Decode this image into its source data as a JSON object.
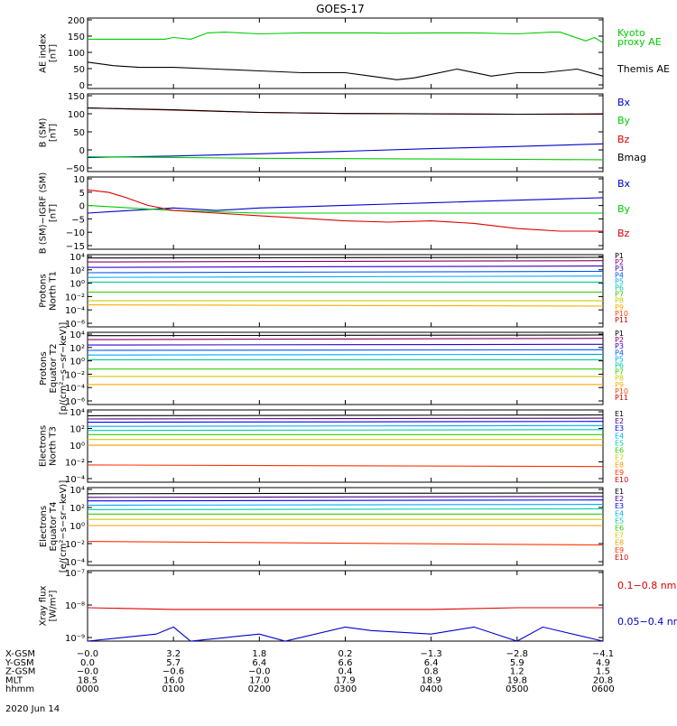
{
  "title": "GOES-17",
  "date_label": "2020 Jun 14",
  "colors": {
    "black": "#000000",
    "green": "#00cc00",
    "blue": "#0000cc",
    "red": "#dd0000",
    "P1": "#000000",
    "P2": "#8b0066",
    "P3": "#3300cc",
    "P4": "#0055ff",
    "P5": "#00aaff",
    "P6": "#00cc99",
    "P7": "#33cc00",
    "P8": "#cccc00",
    "P9": "#ffaa00",
    "P10": "#ff4400",
    "P11": "#cc0000",
    "E1": "#000000",
    "E2": "#4b0082",
    "E3": "#0000ff",
    "E4": "#00aaff",
    "E5": "#00ccaa",
    "E6": "#33cc00",
    "E7": "#cccc00",
    "E8": "#ff9900",
    "E9": "#ff3300",
    "E10": "#cc0000"
  },
  "chart_data": [
    {
      "id": "ae",
      "type": "line",
      "ylabel": [
        "AE index",
        "[nT]"
      ],
      "yticks": [
        "200",
        "150",
        "100",
        "50",
        "0"
      ],
      "ylim": [
        0,
        200
      ],
      "series": [
        {
          "name": "Kyoto",
          "name2": "proxy AE",
          "color_key": "green",
          "x": [
            0,
            0.5,
            0.9,
            1,
            1.2,
            1.4,
            1.6,
            2,
            2.5,
            3,
            3.3,
            3.5,
            4,
            4.5,
            5,
            5.4,
            5.5,
            5.8,
            5.9,
            6
          ],
          "values": [
            140,
            140,
            140,
            145,
            140,
            158,
            160,
            155,
            158,
            158,
            158,
            157,
            158,
            158,
            155,
            160,
            160,
            135,
            145,
            130
          ]
        },
        {
          "name": "Themis AE",
          "color_key": "black",
          "x": [
            0,
            0.3,
            0.6,
            1,
            1.5,
            2,
            2.5,
            3,
            3.3,
            3.6,
            3.8,
            4,
            4.3,
            4.7,
            5,
            5.3,
            5.7,
            6
          ],
          "values": [
            75,
            65,
            60,
            60,
            55,
            50,
            45,
            45,
            35,
            25,
            30,
            40,
            55,
            35,
            45,
            45,
            55,
            35
          ]
        }
      ]
    },
    {
      "id": "bsm",
      "type": "line",
      "ylabel": [
        "B (SM)",
        "[nT]"
      ],
      "yticks": [
        "150",
        "100",
        "50",
        "0",
        "−50"
      ],
      "ylim": [
        -60,
        150
      ],
      "series": [
        {
          "name": "Bx",
          "color_key": "blue",
          "x": [
            0,
            1,
            2,
            3,
            4,
            5,
            6
          ],
          "values": [
            -22,
            -18,
            -12,
            -5,
            2,
            8,
            15
          ]
        },
        {
          "name": "By",
          "color_key": "green",
          "x": [
            0,
            1,
            2,
            3,
            4,
            5,
            6
          ],
          "values": [
            -20,
            -22,
            -24,
            -25,
            -26,
            -27,
            -28
          ]
        },
        {
          "name": "Bz",
          "color_key": "red",
          "x": [
            0,
            1,
            2,
            3,
            4,
            5,
            6
          ],
          "values": [
            112,
            106,
            100,
            97,
            96,
            95,
            95
          ]
        },
        {
          "name": "Bmag",
          "color_key": "black",
          "x": [
            0,
            1,
            2,
            3,
            4,
            5,
            6
          ],
          "values": [
            112,
            107,
            100,
            97,
            96,
            95,
            96
          ]
        }
      ]
    },
    {
      "id": "dbsm",
      "type": "line",
      "ylabel": [
        "B (SM)−IGRF (SM)",
        "[nT]"
      ],
      "yticks": [
        "10",
        "5",
        "0",
        "−5",
        "−10",
        "−15"
      ],
      "ylim": [
        -17,
        11
      ],
      "series": [
        {
          "name": "Bx",
          "color_key": "blue",
          "x": [
            0,
            0.5,
            1,
            1.5,
            2,
            2.5,
            3,
            3.5,
            4,
            4.5,
            5,
            5.5,
            6
          ],
          "values": [
            -3,
            -2,
            -1,
            -2,
            -1,
            -0.5,
            0,
            0.5,
            1,
            1.5,
            2,
            2.5,
            3
          ]
        },
        {
          "name": "By",
          "color_key": "green",
          "x": [
            0,
            0.5,
            1,
            1.5,
            2,
            2.5,
            3,
            3.5,
            4,
            4.5,
            5,
            5.5,
            6
          ],
          "values": [
            0,
            -1,
            -2,
            -2.5,
            -3,
            -3,
            -3,
            -3,
            -3,
            -3,
            -3,
            -3,
            -3
          ]
        },
        {
          "name": "Bz",
          "color_key": "red",
          "x": [
            0,
            0.25,
            0.45,
            0.7,
            1,
            1.5,
            2,
            2.5,
            3,
            3.5,
            4,
            4.5,
            5,
            5.5,
            6
          ],
          "values": [
            6,
            5,
            3,
            0,
            -2,
            -3,
            -4,
            -5,
            -6,
            -6.5,
            -6,
            -7,
            -9,
            -10,
            -10
          ]
        }
      ]
    },
    {
      "id": "protons_t1",
      "type": "line",
      "log": true,
      "ylabel": [
        "Protons",
        "North T1"
      ],
      "yticks": [
        "10⁴",
        "10²",
        "10⁰",
        "10⁻²",
        "10⁻⁴",
        "10⁻⁶"
      ],
      "ylim": [
        -6.5,
        4.3
      ],
      "series": [
        {
          "name": "P1",
          "color_key": "P1",
          "x": [
            0,
            6
          ],
          "values": [
            3.8,
            3.9
          ]
        },
        {
          "name": "P2",
          "color_key": "P2",
          "x": [
            0,
            6
          ],
          "values": [
            3.2,
            3.4
          ]
        },
        {
          "name": "P3",
          "color_key": "P3",
          "x": [
            0,
            6
          ],
          "values": [
            2.4,
            2.6
          ]
        },
        {
          "name": "P4",
          "color_key": "P4",
          "x": [
            0,
            6
          ],
          "values": [
            1.6,
            1.8
          ]
        },
        {
          "name": "P5",
          "color_key": "P5",
          "x": [
            0,
            6
          ],
          "values": [
            0.9,
            1.1
          ]
        },
        {
          "name": "P6",
          "color_key": "P6",
          "x": [
            0,
            6
          ],
          "values": [
            0.2,
            0.2
          ]
        },
        {
          "name": "P7",
          "color_key": "P7",
          "x": [
            0,
            6
          ],
          "values": [
            -1.3,
            -1.3
          ]
        },
        {
          "name": "P8",
          "color_key": "P8",
          "x": [
            0,
            6
          ],
          "values": [
            -2.6,
            -2.6
          ]
        },
        {
          "name": "P9",
          "color_key": "P9",
          "x": [
            0,
            6
          ],
          "values": [
            -3.2,
            -3.4
          ]
        }
      ]
    },
    {
      "id": "protons_t2",
      "type": "line",
      "log": true,
      "ylabel": [
        "Protons",
        "Equator T2",
        "[p/(cm²−s−sr−keV)]"
      ],
      "yticks": [
        "10⁴",
        "10²",
        "10⁰",
        "10⁻²",
        "10⁻⁴",
        "10⁻⁶"
      ],
      "ylim": [
        -6.5,
        4.3
      ],
      "series": [
        {
          "name": "P1",
          "color_key": "P1",
          "x": [
            0,
            6
          ],
          "values": [
            3.8,
            3.9
          ]
        },
        {
          "name": "P2",
          "color_key": "P2",
          "x": [
            0,
            6
          ],
          "values": [
            3.2,
            3.4
          ]
        },
        {
          "name": "P3",
          "color_key": "P3",
          "x": [
            0,
            6
          ],
          "values": [
            2.4,
            2.5
          ]
        },
        {
          "name": "P4",
          "color_key": "P4",
          "x": [
            0,
            6
          ],
          "values": [
            1.6,
            1.7
          ]
        },
        {
          "name": "P5",
          "color_key": "P5",
          "x": [
            0,
            6
          ],
          "values": [
            0.9,
            1.0
          ]
        },
        {
          "name": "P6",
          "color_key": "P6",
          "x": [
            0,
            6
          ],
          "values": [
            0.2,
            0.2
          ]
        },
        {
          "name": "P7",
          "color_key": "P7",
          "x": [
            0,
            6
          ],
          "values": [
            -1.2,
            -1.2
          ]
        },
        {
          "name": "P8",
          "color_key": "P8",
          "x": [
            0,
            6
          ],
          "values": [
            -2.3,
            -2.3
          ]
        },
        {
          "name": "P9",
          "color_key": "P9",
          "x": [
            0,
            6
          ],
          "values": [
            -3.5,
            -3.5
          ]
        }
      ]
    },
    {
      "id": "electrons_t3",
      "type": "line",
      "log": true,
      "ylabel": [
        "Electrons",
        "North T3"
      ],
      "yticks": [
        "10⁴",
        "10²",
        "10⁰",
        "10⁻²",
        "10⁻⁴"
      ],
      "ylim": [
        -4.5,
        4.3
      ],
      "series": [
        {
          "name": "E1",
          "color_key": "E1",
          "x": [
            0,
            6
          ],
          "values": [
            3.6,
            3.7
          ]
        },
        {
          "name": "E2",
          "color_key": "E2",
          "x": [
            0,
            6
          ],
          "values": [
            3.2,
            3.3
          ]
        },
        {
          "name": "E3",
          "color_key": "E3",
          "x": [
            0,
            6
          ],
          "values": [
            2.8,
            2.9
          ]
        },
        {
          "name": "E4",
          "color_key": "E4",
          "x": [
            0,
            6
          ],
          "values": [
            2.3,
            2.4
          ]
        },
        {
          "name": "E5",
          "color_key": "E5",
          "x": [
            0,
            6
          ],
          "values": [
            1.8,
            1.9
          ]
        },
        {
          "name": "E6",
          "color_key": "E6",
          "x": [
            0,
            6
          ],
          "values": [
            1.3,
            1.3
          ]
        },
        {
          "name": "E7",
          "color_key": "E7",
          "x": [
            0,
            6
          ],
          "values": [
            0.7,
            0.7
          ]
        },
        {
          "name": "E8",
          "color_key": "E8",
          "x": [
            0,
            6
          ],
          "values": [
            0.0,
            0.0
          ]
        },
        {
          "name": "E9",
          "color_key": "E9",
          "x": [
            0,
            6
          ],
          "values": [
            -2.4,
            -2.6
          ]
        }
      ]
    },
    {
      "id": "electrons_t4",
      "type": "line",
      "log": true,
      "ylabel": [
        "Electrons",
        "Equator T4",
        "[e/(cm²−s−sr−keV)]"
      ],
      "yticks": [
        "10⁴",
        "10²",
        "10⁰",
        "10⁻²",
        "10⁻⁴"
      ],
      "ylim": [
        -4.5,
        4.3
      ],
      "series": [
        {
          "name": "E1",
          "color_key": "E1",
          "x": [
            0,
            6
          ],
          "values": [
            3.6,
            3.7
          ]
        },
        {
          "name": "E2",
          "color_key": "E2",
          "x": [
            0,
            6
          ],
          "values": [
            3.2,
            3.3
          ]
        },
        {
          "name": "E3",
          "color_key": "E3",
          "x": [
            0,
            6
          ],
          "values": [
            2.8,
            2.9
          ]
        },
        {
          "name": "E4",
          "color_key": "E4",
          "x": [
            0,
            6
          ],
          "values": [
            2.3,
            2.4
          ]
        },
        {
          "name": "E5",
          "color_key": "E5",
          "x": [
            0,
            6
          ],
          "values": [
            1.8,
            1.9
          ]
        },
        {
          "name": "E6",
          "color_key": "E6",
          "x": [
            0,
            6
          ],
          "values": [
            1.3,
            1.3
          ]
        },
        {
          "name": "E7",
          "color_key": "E7",
          "x": [
            0,
            6
          ],
          "values": [
            0.7,
            0.7
          ]
        },
        {
          "name": "E8",
          "color_key": "E8",
          "x": [
            0,
            6
          ],
          "values": [
            0.0,
            0.0
          ]
        },
        {
          "name": "E9",
          "color_key": "E9",
          "x": [
            0,
            6
          ],
          "values": [
            -1.8,
            -2.2
          ]
        }
      ]
    },
    {
      "id": "xray",
      "type": "line",
      "log": true,
      "ylabel": [
        "Xray flux",
        "[W/m²]"
      ],
      "yticks": [
        "10⁻⁷",
        "10⁻⁸",
        "10⁻⁹"
      ],
      "ylim": [
        -9,
        -7
      ],
      "series": [
        {
          "name": "0.1−0.8 nm",
          "color_key": "red",
          "x": [
            0,
            1,
            2,
            3,
            4,
            5,
            6
          ],
          "values": [
            -8.05,
            -8.1,
            -8.1,
            -8.1,
            -8.1,
            -8.05,
            -8.05
          ]
        },
        {
          "name": "0.05−0.4 nm",
          "color_key": "blue",
          "x": [
            0,
            0.8,
            1,
            1.2,
            2,
            2.3,
            3,
            3.3,
            4,
            4.5,
            5,
            5.3,
            6
          ],
          "values": [
            -9,
            -8.8,
            -8.6,
            -9,
            -8.8,
            -9,
            -8.6,
            -8.7,
            -8.8,
            -8.6,
            -9,
            -8.6,
            -9
          ]
        }
      ]
    }
  ],
  "legends": {
    "ae": [
      "Kyoto",
      "proxy AE",
      "Themis AE"
    ],
    "bsm": [
      "Bx",
      "By",
      "Bz",
      "Bmag"
    ],
    "dbsm": [
      "Bx",
      "By",
      "Bz"
    ],
    "protons": [
      "P1",
      "P2",
      "P3",
      "P4",
      "P5",
      "P6",
      "P7",
      "P8",
      "P9",
      "P10",
      "P11"
    ],
    "electrons": [
      "E1",
      "E2",
      "E3",
      "E4",
      "E5",
      "E6",
      "E7",
      "E8",
      "E9",
      "E10"
    ],
    "xray": [
      "0.1−0.8 nm",
      "0.05−0.4 nm"
    ]
  },
  "bottom_axis": {
    "row_labels": [
      "X-GSM",
      "Y-GSM",
      "Z-GSM",
      "MLT",
      "hhmm"
    ],
    "columns": [
      [
        "−0.0",
        "0.0",
        "−0.0",
        "18.5",
        "0000"
      ],
      [
        "3.2",
        "5.7",
        "−0.6",
        "16.0",
        "0100"
      ],
      [
        "1.8",
        "6.4",
        "−0.0",
        "17.0",
        "0200"
      ],
      [
        "0.2",
        "6.6",
        "0.4",
        "17.9",
        "0300"
      ],
      [
        "−1.3",
        "6.4",
        "0.8",
        "18.9",
        "0400"
      ],
      [
        "−2.8",
        "5.9",
        "1.2",
        "19.8",
        "0500"
      ],
      [
        "−4.1",
        "4.9",
        "1.5",
        "20.8",
        "0600"
      ]
    ]
  }
}
